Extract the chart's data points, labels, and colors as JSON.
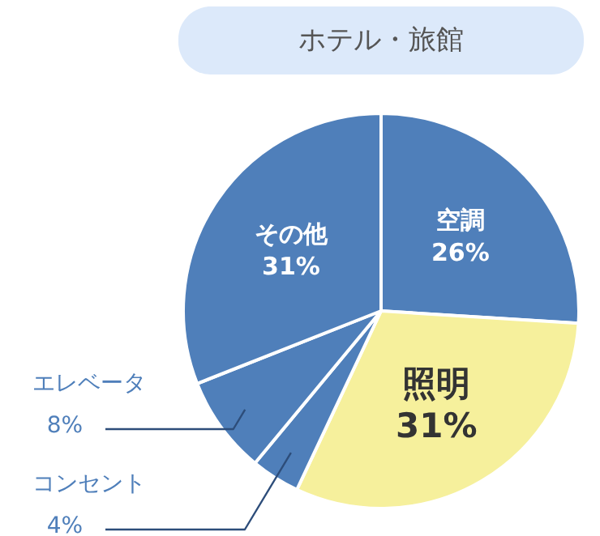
{
  "chart_data": {
    "type": "pie",
    "title": "ホテル・旅館",
    "categories": [
      "空調",
      "照明",
      "コンセント",
      "エレベータ",
      "その他"
    ],
    "values": [
      26,
      31,
      4,
      8,
      31
    ],
    "colors": [
      "#4f7fba",
      "#f6f09c",
      "#4f7fba",
      "#4f7fba",
      "#4f7fba"
    ],
    "value_labels": [
      "26%",
      "31%",
      "4%",
      "8%",
      "31%"
    ]
  }
}
